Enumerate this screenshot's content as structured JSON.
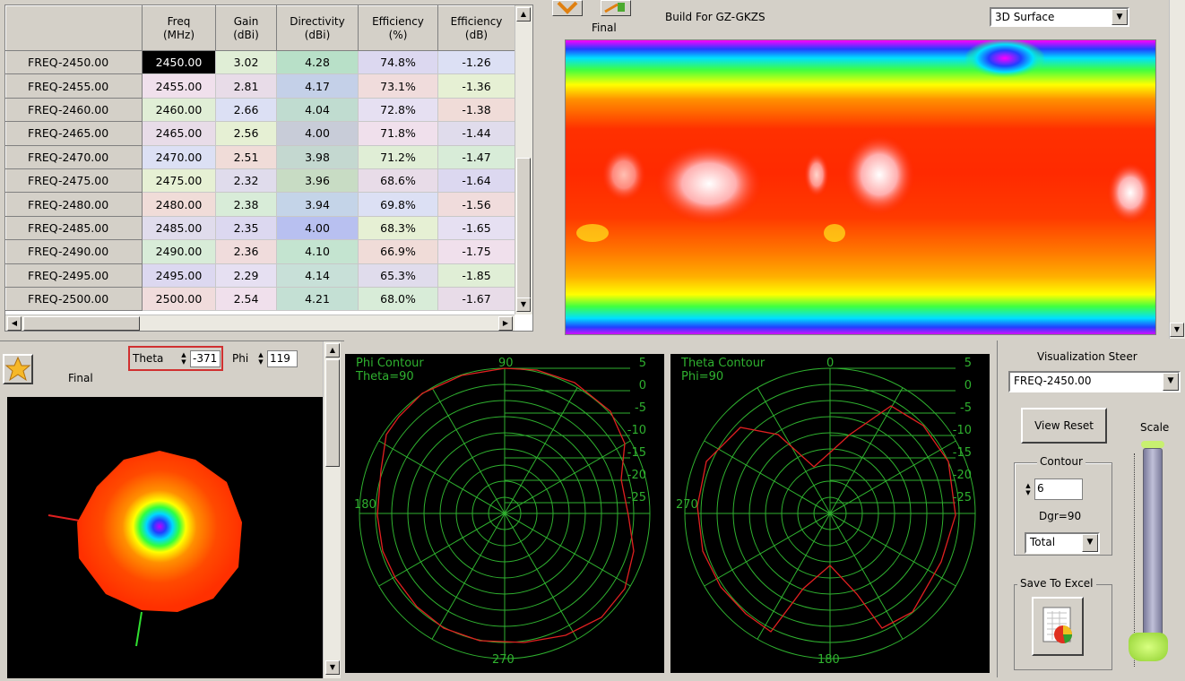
{
  "table": {
    "headers": [
      "",
      "Freq\n(MHz)",
      "Gain\n(dBi)",
      "Directivity\n(dBi)",
      "Efficiency\n(%)",
      "Efficiency\n(dB)"
    ],
    "rows": [
      {
        "name": "FREQ-2450.00",
        "freq": "2450.00",
        "gain": "3.02",
        "dir": "4.28",
        "eff": "74.8%",
        "effdb": "-1.26"
      },
      {
        "name": "FREQ-2455.00",
        "freq": "2455.00",
        "gain": "2.81",
        "dir": "4.17",
        "eff": "73.1%",
        "effdb": "-1.36"
      },
      {
        "name": "FREQ-2460.00",
        "freq": "2460.00",
        "gain": "2.66",
        "dir": "4.04",
        "eff": "72.8%",
        "effdb": "-1.38"
      },
      {
        "name": "FREQ-2465.00",
        "freq": "2465.00",
        "gain": "2.56",
        "dir": "4.00",
        "eff": "71.8%",
        "effdb": "-1.44"
      },
      {
        "name": "FREQ-2470.00",
        "freq": "2470.00",
        "gain": "2.51",
        "dir": "3.98",
        "eff": "71.2%",
        "effdb": "-1.47"
      },
      {
        "name": "FREQ-2475.00",
        "freq": "2475.00",
        "gain": "2.32",
        "dir": "3.96",
        "eff": "68.6%",
        "effdb": "-1.64"
      },
      {
        "name": "FREQ-2480.00",
        "freq": "2480.00",
        "gain": "2.38",
        "dir": "3.94",
        "eff": "69.8%",
        "effdb": "-1.56"
      },
      {
        "name": "FREQ-2485.00",
        "freq": "2485.00",
        "gain": "2.35",
        "dir": "4.00",
        "eff": "68.3%",
        "effdb": "-1.65"
      },
      {
        "name": "FREQ-2490.00",
        "freq": "2490.00",
        "gain": "2.36",
        "dir": "4.10",
        "eff": "66.9%",
        "effdb": "-1.75"
      },
      {
        "name": "FREQ-2495.00",
        "freq": "2495.00",
        "gain": "2.29",
        "dir": "4.14",
        "eff": "65.3%",
        "effdb": "-1.85"
      },
      {
        "name": "FREQ-2500.00",
        "freq": "2500.00",
        "gain": "2.54",
        "dir": "4.21",
        "eff": "68.0%",
        "effdb": "-1.67"
      }
    ]
  },
  "surface": {
    "final_label": "Final",
    "build_label": "Build For GZ-GKZS",
    "view_select": "3D Surface"
  },
  "pattern3d": {
    "final_label": "Final",
    "theta_label": "Theta",
    "theta_value": "-371",
    "phi_label": "Phi",
    "phi_value": "119"
  },
  "phi_contour": {
    "title": "Phi Contour",
    "subtitle": "Theta=90",
    "angle_top": "90",
    "angle_left": "180",
    "angle_bottom": "270",
    "scale": [
      "5",
      "0",
      "-5",
      "-10",
      "-15",
      "-20",
      "-25"
    ]
  },
  "theta_contour": {
    "title": "Theta Contour",
    "subtitle": "Phi=90",
    "angle_top": "0",
    "angle_left": "270",
    "angle_bottom": "180",
    "scale": [
      "5",
      "0",
      "-5",
      "-10",
      "-15",
      "-20",
      "-25"
    ]
  },
  "controls": {
    "steer_label": "Visualization Steer",
    "steer_value": "FREQ-2450.00",
    "view_reset": "View Reset",
    "scale_label": "Scale",
    "contour_label": "Contour",
    "contour_value": "6",
    "dgr_label": "Dgr=90",
    "mode_value": "Total",
    "save_label": "Save To Excel"
  },
  "colors": {
    "contour_green": "#2fb12f",
    "trace_red": "#e02020",
    "selected_cell": "#000000"
  }
}
